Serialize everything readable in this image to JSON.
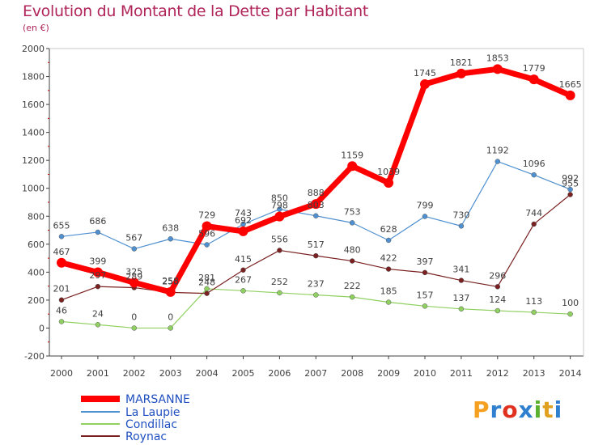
{
  "header": {
    "title": "Evolution du Montant de la Dette par Habitant",
    "unit": "(en €)"
  },
  "logo": {
    "text": "Proxiti"
  },
  "colors": {
    "title": "#b0245a",
    "axis": "#404040",
    "label": "#404040",
    "grid_tick": "#c00000",
    "legend_text": "#2050c0"
  },
  "chart_data": {
    "type": "line",
    "title": "Evolution du Montant de la Dette par Habitant",
    "ylabel": "(en €)",
    "xlabel": "",
    "x": [
      2000,
      2001,
      2002,
      2003,
      2004,
      2005,
      2006,
      2007,
      2008,
      2009,
      2010,
      2011,
      2012,
      2013,
      2014
    ],
    "ylim": [
      -200,
      2000
    ],
    "yticks": [
      -200,
      0,
      200,
      400,
      600,
      800,
      1000,
      1200,
      1400,
      1600,
      1800,
      2000
    ],
    "grid": false,
    "legend": "bottom-left",
    "series": [
      {
        "name": "MARSANNE",
        "color": "#ff0000",
        "values": [
          467,
          399,
          325,
          258,
          729,
          692,
          798,
          888,
          1159,
          1039,
          1745,
          1821,
          1853,
          1779,
          1665
        ]
      },
      {
        "name": "La Laupie",
        "color": "#4f90d0",
        "values": [
          655,
          686,
          567,
          638,
          596,
          743,
          850,
          803,
          753,
          628,
          799,
          730,
          1192,
          1096,
          992
        ]
      },
      {
        "name": "Condillac",
        "color": "#8fd060",
        "values": [
          46,
          24,
          0,
          0,
          281,
          267,
          252,
          237,
          222,
          185,
          157,
          137,
          124,
          113,
          100
        ]
      },
      {
        "name": "Roynac",
        "color": "#7a2020",
        "values": [
          201,
          297,
          289,
          255,
          248,
          415,
          556,
          517,
          480,
          422,
          397,
          341,
          296,
          744,
          955
        ]
      }
    ]
  }
}
